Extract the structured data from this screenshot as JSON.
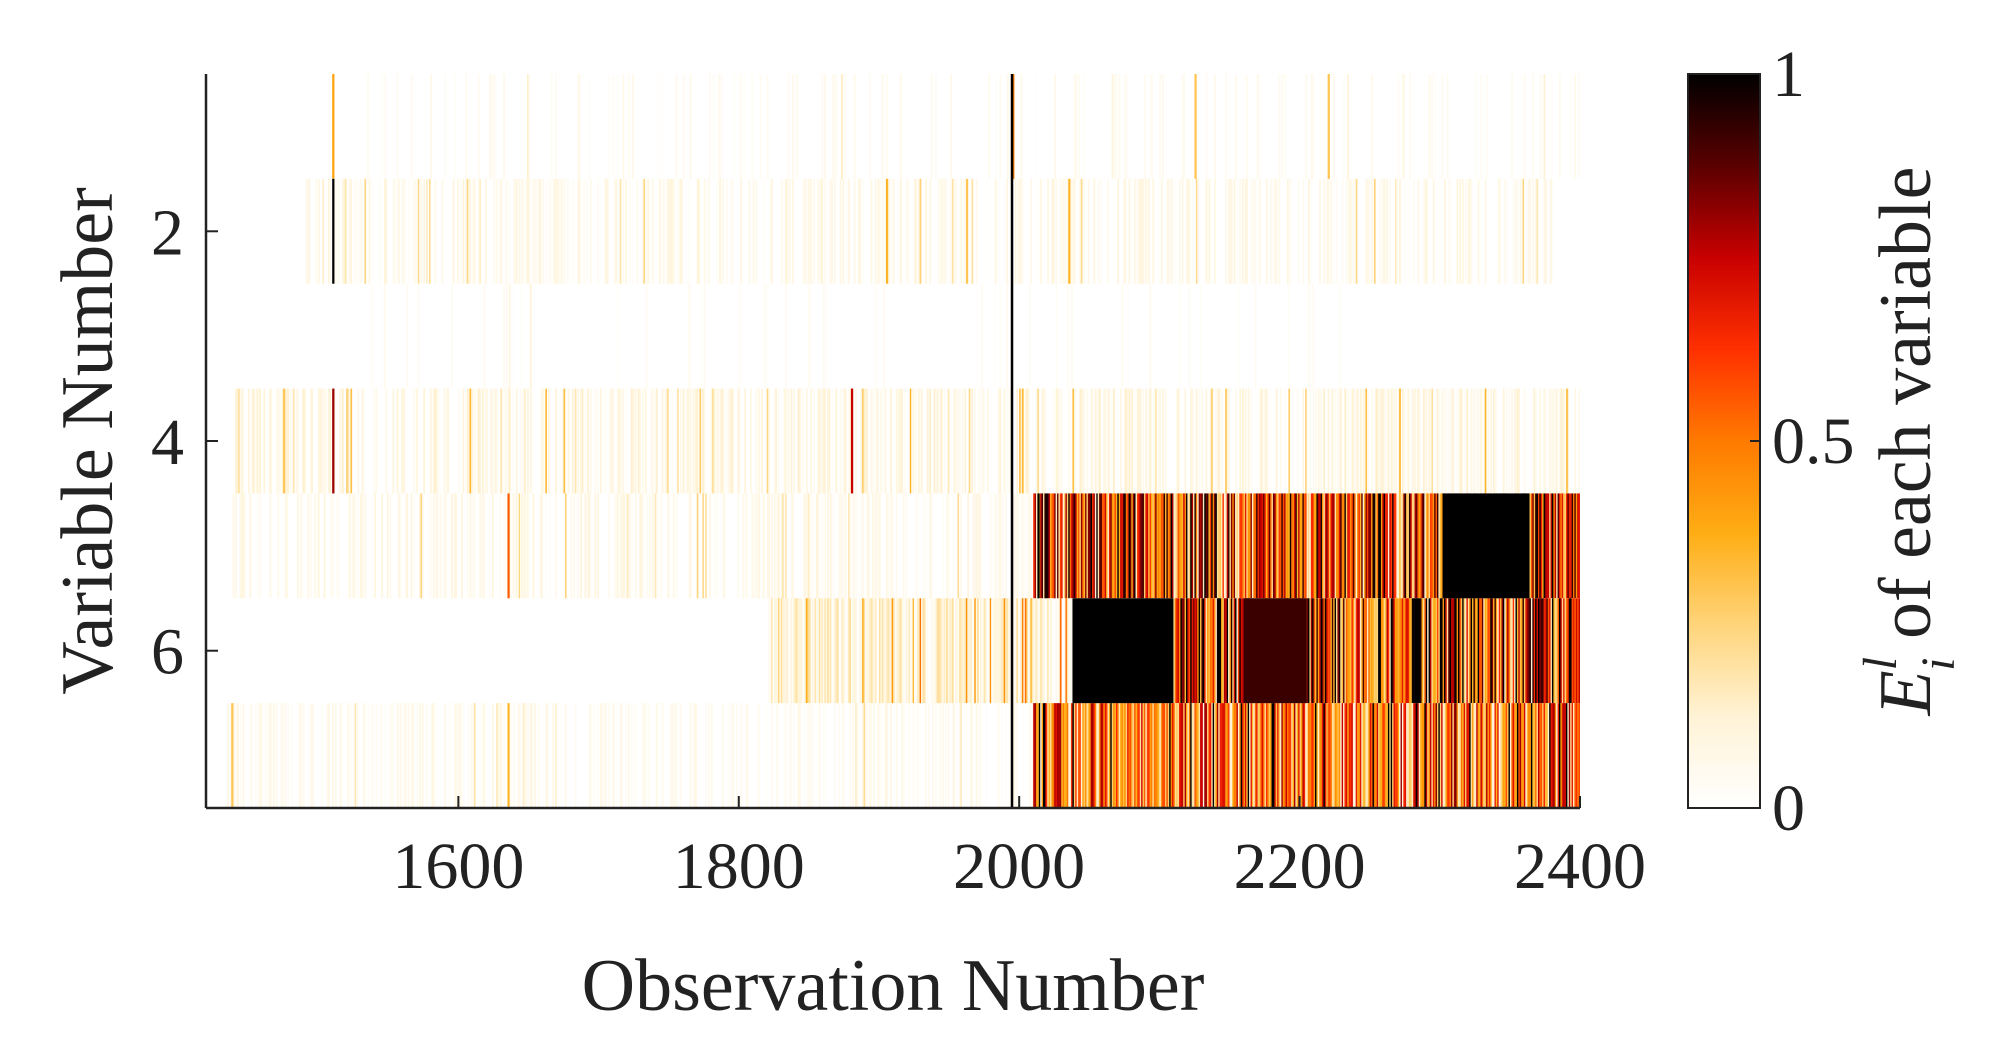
{
  "chart_data": {
    "type": "heatmap",
    "xlabel": "Observation Number",
    "ylabel": "Variable Number",
    "colorbar_label": {
      "main": "E",
      "superscript": "l",
      "subscript": "i",
      "rest": " of each variable"
    },
    "x_range": [
      1420,
      2400
    ],
    "x_ticks": [
      1600,
      1800,
      2000,
      2200,
      2400
    ],
    "y_range": [
      0.5,
      7.5
    ],
    "y_ticks": [
      2,
      4,
      6
    ],
    "rows": [
      1,
      2,
      3,
      4,
      5,
      6,
      7
    ],
    "colorbar_range": [
      0,
      1
    ],
    "colorbar_ticks": [
      0,
      0.5,
      1
    ],
    "colormap": [
      "#ffffff",
      "#fff3d6",
      "#ffd47a",
      "#ffad14",
      "#ff7a00",
      "#ff3000",
      "#c80000",
      "#5a0000",
      "#000000"
    ],
    "vertical_lines": [
      {
        "x": 1994,
        "rows": [
          1,
          7
        ],
        "value": 1.0
      }
    ],
    "stripes": [
      {
        "row": 1,
        "x": 1510,
        "value": 0.4
      },
      {
        "row": 1,
        "x": 1995,
        "value": 0.5
      },
      {
        "row": 1,
        "x": 2125,
        "value": 0.3
      },
      {
        "row": 1,
        "x": 2220,
        "value": 0.3
      },
      {
        "row": 2,
        "x": 1510,
        "value": 1.0
      },
      {
        "row": 2,
        "x": 1905,
        "value": 0.35
      },
      {
        "row": 2,
        "x": 1962,
        "value": 0.3
      },
      {
        "row": 2,
        "x": 2035,
        "value": 0.35
      },
      {
        "row": 4,
        "x": 1510,
        "value": 0.8
      },
      {
        "row": 4,
        "x": 1880,
        "value": 0.75
      },
      {
        "row": 4,
        "x": 1475,
        "value": 0.3
      },
      {
        "row": 4,
        "x": 2390,
        "value": 0.3
      },
      {
        "row": 5,
        "x": 1635,
        "value": 0.55
      },
      {
        "row": 5,
        "x": 2013,
        "value": 1.0
      },
      {
        "row": 5,
        "x": 2018,
        "value": 0.95
      },
      {
        "row": 7,
        "x": 1438,
        "value": 0.3
      },
      {
        "row": 7,
        "x": 1635,
        "value": 0.35
      },
      {
        "row": 7,
        "x": 2017,
        "value": 1.0
      }
    ],
    "blocks": [
      {
        "row": 5,
        "x": [
          2302,
          2364
        ],
        "value": 1.0
      },
      {
        "row": 6,
        "x": [
          2038,
          2110
        ],
        "value": 1.0
      },
      {
        "row": 6,
        "x": [
          2160,
          2205
        ],
        "value": 0.92
      }
    ],
    "row_profiles": [
      {
        "row": 1,
        "x": [
          1490,
          2400
        ],
        "level": 0.04,
        "density": 0.15
      },
      {
        "row": 2,
        "x": [
          1490,
          2380
        ],
        "level": 0.06,
        "density": 0.45
      },
      {
        "row": 3,
        "x": [
          1500,
          2240
        ],
        "level": 0.03,
        "density": 0.08
      },
      {
        "row": 4,
        "x": [
          1440,
          2400
        ],
        "level": 0.08,
        "density": 0.5
      },
      {
        "row": 5,
        "x": [
          1435,
          2400
        ],
        "level": 0.06,
        "density": 0.4
      },
      {
        "row": 5,
        "x": [
          2010,
          2400
        ],
        "level": 0.55,
        "density": 1.0
      },
      {
        "row": 6,
        "x": [
          1820,
          2400
        ],
        "level": 0.12,
        "density": 0.85
      },
      {
        "row": 6,
        "x": [
          2110,
          2400
        ],
        "level": 0.6,
        "density": 1.0
      },
      {
        "row": 7,
        "x": [
          1435,
          2010
        ],
        "level": 0.05,
        "density": 0.4
      },
      {
        "row": 7,
        "x": [
          2010,
          2400
        ],
        "level": 0.45,
        "density": 1.0
      }
    ]
  }
}
